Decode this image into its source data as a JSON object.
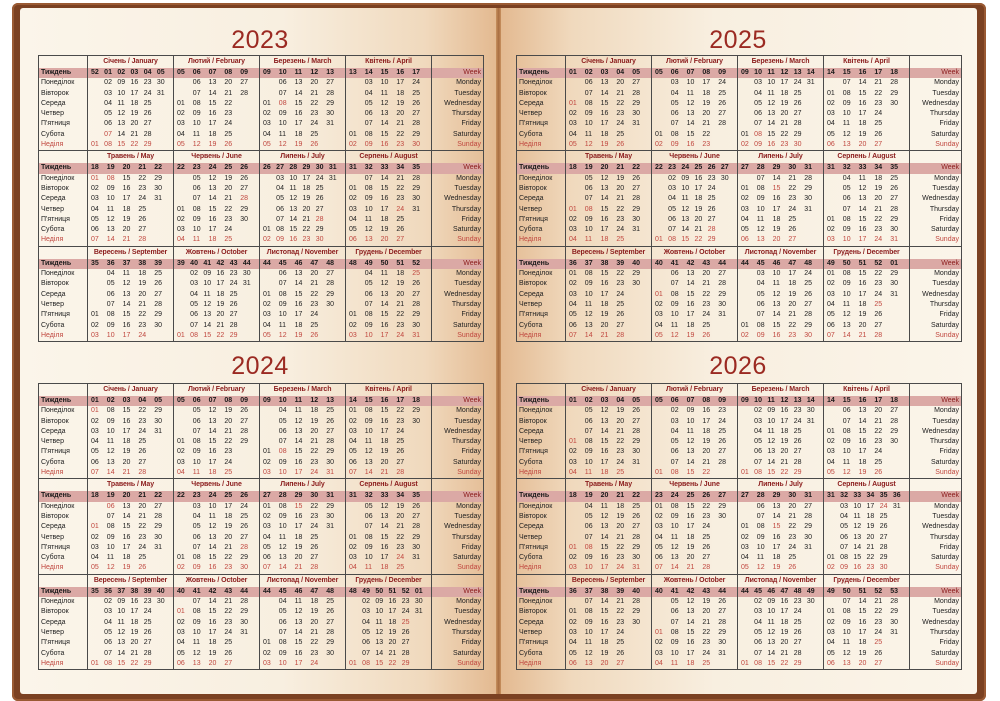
{
  "labels_ua": [
    "Тиждень",
    "Понеділок",
    "Вівторок",
    "Середа",
    "Четвер",
    "П'ятниця",
    "Субота",
    "Неділя"
  ],
  "labels_en": [
    "Week",
    "Monday",
    "Tuesday",
    "Wednesday",
    "Thursday",
    "Friday",
    "Saturday",
    "Sunday"
  ],
  "month_names": [
    "Січень / January",
    "Лютий / February",
    "Березень / March",
    "Квітень / April",
    "Травень / May",
    "Червень / June",
    "Липень / July",
    "Серпень / August",
    "Вересень / September",
    "Жовтень / October",
    "Листопад / November",
    "Грудень / December"
  ],
  "colors": {
    "cover": "#7b4122",
    "title": "#9b2a22",
    "month_header": "#8b1c1c",
    "week_band": "#dba9a5",
    "holiday": "#c0473f"
  },
  "years": [
    {
      "year": "2023",
      "holidays": [
        "1-7",
        "3-8",
        "5-1",
        "5-8",
        "6-28",
        "7-28",
        "8-24",
        "12-25"
      ],
      "months": [
        {
          "weeks": "52 01 02 03 04 05",
          "rows": [
            "   02 09 16 23 30",
            "   03 10 17 24 31",
            "   04 11 18 25",
            "   05 12 19 26",
            "   06 13 20 27",
            "   07 14 21 28",
            "01 08 15 22 29"
          ]
        },
        {
          "weeks": "05 06 07 08 09",
          "rows": [
            "   06 13 20 27",
            "   07 14 21 28",
            "01 08 15 22",
            "02 09 16 23",
            "03 10 17 24",
            "04 11 18 25",
            "05 12 19 26"
          ]
        },
        {
          "weeks": "09 10 11 12 13",
          "rows": [
            "   06 13 20 27",
            "   07 14 21 28",
            "01 08 15 22 29",
            "02 09 16 23 30",
            "03 10 17 24 31",
            "04 11 18 25",
            "05 12 19 26"
          ]
        },
        {
          "weeks": "13 14 15 16 17",
          "rows": [
            "   03 10 17 24",
            "   04 11 18 25",
            "   05 12 19 26",
            "   06 13 20 27",
            "   07 14 21 28",
            "01 08 15 22 29",
            "02 09 16 23 30"
          ]
        },
        {
          "weeks": "18 19 20 21 22",
          "rows": [
            "01 08 15 22 29",
            "02 09 16 23 30",
            "03 10 17 24 31",
            "04 11 18 25",
            "05 12 19 26",
            "06 13 20 27",
            "07 14 21 28"
          ]
        },
        {
          "weeks": "22 23 24 25 26",
          "rows": [
            "   05 12 19 26",
            "   06 13 20 27",
            "   07 14 21 28",
            "01 08 15 22 29",
            "02 09 16 23 30",
            "03 10 17 24",
            "04 11 18 25"
          ]
        },
        {
          "weeks": "26 27 28 29 30 31",
          "rows": [
            "   03 10 17 24 31",
            "   04 11 18 25",
            "   05 12 19 26",
            "   06 13 20 27",
            "   07 14 21 28",
            "01 08 15 22 29",
            "02 09 16 23 30"
          ]
        },
        {
          "weeks": "31 32 33 34 35",
          "rows": [
            "   07 14 21 28",
            "01 08 15 22 29",
            "02 09 16 23 30",
            "03 10 17 24 31",
            "04 11 18 25",
            "05 12 19 26",
            "06 13 20 27"
          ]
        },
        {
          "weeks": "35 36 37 38 39",
          "rows": [
            "   04 11 18 25",
            "   05 12 19 26",
            "   06 13 20 27",
            "   07 14 21 28",
            "01 08 15 22 29",
            "02 09 16 23 30",
            "03 10 17 24"
          ]
        },
        {
          "weeks": "39 40 41 42 43 44",
          "rows": [
            "   02 09 16 23 30",
            "   03 10 17 24 31",
            "   04 11 18 25",
            "   05 12 19 26",
            "   06 13 20 27",
            "   07 14 21 28",
            "01 08 15 22 29"
          ]
        },
        {
          "weeks": "44 45 46 47 48",
          "rows": [
            "   06 13 20 27",
            "   07 14 21 28",
            "01 08 15 22 29",
            "02 09 16 23 30",
            "03 10 17 24",
            "04 11 18 25",
            "05 12 19 26"
          ]
        },
        {
          "weeks": "48 49 50 51 52",
          "rows": [
            "   04 11 18 25",
            "   05 12 19 26",
            "   06 13 20 27",
            "   07 14 21 28",
            "01 08 15 22 29",
            "02 09 16 23 30",
            "03 10 17 24 31"
          ]
        }
      ]
    },
    {
      "year": "2024",
      "holidays": [
        "1-1",
        "1-7",
        "3-8",
        "5-1",
        "5-6",
        "6-28",
        "7-15",
        "8-24",
        "10-1",
        "12-25"
      ],
      "months": [
        {
          "weeks": "01 02 03 04 05",
          "rows": [
            "01 08 15 22 29",
            "02 09 16 23 30",
            "03 10 17 24 31",
            "04 11 18 25",
            "05 12 19 26",
            "06 13 20 27",
            "07 14 21 28"
          ]
        },
        {
          "weeks": "05 06 07 08 09",
          "rows": [
            "   05 12 19 26",
            "   06 13 20 27",
            "   07 14 21 28",
            "01 08 15 22 29",
            "02 09 16 23",
            "03 10 17 24",
            "04 11 18 25"
          ]
        },
        {
          "weeks": "09 10 11 12 13",
          "rows": [
            "   04 11 18 25",
            "   05 12 19 26",
            "   06 13 20 27",
            "   07 14 21 28",
            "01 08 15 22 29",
            "02 09 16 23 30",
            "03 10 17 24 31"
          ]
        },
        {
          "weeks": "14 15 16 17 18",
          "rows": [
            "01 08 15 22 29",
            "02 09 16 23 30",
            "03 10 17 24",
            "04 11 18 25",
            "05 12 19 26",
            "06 13 20 27",
            "07 14 21 28"
          ]
        },
        {
          "weeks": "18 19 20 21 22",
          "rows": [
            "   06 13 20 27",
            "   07 14 21 28",
            "01 08 15 22 29",
            "02 09 16 23 30",
            "03 10 17 24 31",
            "04 11 18 25",
            "05 12 19 26"
          ]
        },
        {
          "weeks": "22 23 24 25 26",
          "rows": [
            "   03 10 17 24",
            "   04 11 18 25",
            "   05 12 19 26",
            "   06 13 20 27",
            "   07 14 21 28",
            "01 08 15 22 29",
            "02 09 16 23 30"
          ]
        },
        {
          "weeks": "27 28 29 30 31",
          "rows": [
            "01 08 15 22 29",
            "02 09 16 23 30",
            "03 10 17 24 31",
            "04 11 18 25",
            "05 12 19 26",
            "06 13 20 27",
            "07 14 21 28"
          ]
        },
        {
          "weeks": "31 32 33 34 35",
          "rows": [
            "   05 12 19 26",
            "   06 13 20 27",
            "   07 14 21 28",
            "01 08 15 22 29",
            "02 09 16 23 30",
            "03 10 17 24 31",
            "04 11 18 25"
          ]
        },
        {
          "weeks": "35 36 37 38 39 40",
          "rows": [
            "   02 09 16 23 30",
            "   03 10 17 24",
            "   04 11 18 25",
            "   05 12 19 26",
            "   06 13 20 27",
            "   07 14 21 28",
            "01 08 15 22 29"
          ]
        },
        {
          "weeks": "40 41 42 43 44",
          "rows": [
            "   07 14 21 28",
            "01 08 15 22 29",
            "02 09 16 23 30",
            "03 10 17 24 31",
            "04 11 18 25",
            "05 12 19 26",
            "06 13 20 27"
          ]
        },
        {
          "weeks": "44 45 46 47 48",
          "rows": [
            "   04 11 18 25",
            "   05 12 19 26",
            "   06 13 20 27",
            "   07 14 21 28",
            "01 08 15 22 29",
            "02 09 16 23 30",
            "03 10 17 24"
          ]
        },
        {
          "weeks": "48 49 50 51 52 01",
          "rows": [
            "   02 09 16 23 30",
            "   03 10 17 24 31",
            "   04 11 18 25",
            "   05 12 19 26",
            "   06 13 20 27",
            "   07 14 21 28",
            "01 08 15 22 29"
          ]
        }
      ]
    },
    {
      "year": "2025",
      "holidays": [
        "1-1",
        "3-8",
        "5-1",
        "5-8",
        "6-28",
        "7-15",
        "8-24",
        "10-1",
        "12-25"
      ],
      "months": [
        {
          "weeks": "01 02 03 04 05",
          "rows": [
            "   06 13 20 27",
            "   07 14 21 28",
            "01 08 15 22 29",
            "02 09 16 23 30",
            "03 10 17 24 31",
            "04 11 18 25",
            "05 12 19 26"
          ]
        },
        {
          "weeks": "05 06 07 08 09",
          "rows": [
            "   03 10 17 24",
            "   04 11 18 25",
            "   05 12 19 26",
            "   06 13 20 27",
            "   07 14 21 28",
            "01 08 15 22",
            "02 09 16 23"
          ]
        },
        {
          "weeks": "09 10 11 12 13 14",
          "rows": [
            "   03 10 17 24 31",
            "   04 11 18 25",
            "   05 12 19 26",
            "   06 13 20 27",
            "   07 14 21 28",
            "01 08 15 22 29",
            "02 09 16 23 30"
          ]
        },
        {
          "weeks": "14 15 16 17 18",
          "rows": [
            "   07 14 21 28",
            "01 08 15 22 29",
            "02 09 16 23 30",
            "03 10 17 24",
            "04 11 18 25",
            "05 12 19 26",
            "06 13 20 27"
          ]
        },
        {
          "weeks": "18 19 20 21 22",
          "rows": [
            "   05 12 19 26",
            "   06 13 20 27",
            "   07 14 21 28",
            "01 08 15 22 29",
            "02 09 16 23 30",
            "03 10 17 24 31",
            "04 11 18 25"
          ]
        },
        {
          "weeks": "22 23 24 25 26 27",
          "rows": [
            "   02 09 16 23 30",
            "   03 10 17 24",
            "   04 11 18 25",
            "   05 12 19 26",
            "   06 13 20 27",
            "   07 14 21 28",
            "01 08 15 22 29"
          ]
        },
        {
          "weeks": "27 28 29 30 31",
          "rows": [
            "   07 14 21 28",
            "01 08 15 22 29",
            "02 09 16 23 30",
            "03 10 17 24 31",
            "04 11 18 25",
            "05 12 19 26",
            "06 13 20 27"
          ]
        },
        {
          "weeks": "31 32 33 34 35",
          "rows": [
            "   04 11 18 25",
            "   05 12 19 26",
            "   06 13 20 27",
            "   07 14 21 28",
            "01 08 15 22 29",
            "02 09 16 23 30",
            "03 10 17 24 31"
          ]
        },
        {
          "weeks": "36 37 38 39 40",
          "rows": [
            "01 08 15 22 29",
            "02 09 16 23 30",
            "03 10 17 24",
            "04 11 18 25",
            "05 12 19 26",
            "06 13 20 27",
            "07 14 21 28"
          ]
        },
        {
          "weeks": "40 41 42 43 44",
          "rows": [
            "   06 13 20 27",
            "   07 14 21 28",
            "01 08 15 22 29",
            "02 09 16 23 30",
            "03 10 17 24 31",
            "04 11 18 25",
            "05 12 19 26"
          ]
        },
        {
          "weeks": "44 45 46 47 48",
          "rows": [
            "   03 10 17 24",
            "   04 11 18 25",
            "   05 12 19 26",
            "   06 13 20 27",
            "   07 14 21 28",
            "01 08 15 22 29",
            "02 09 16 23 30"
          ]
        },
        {
          "weeks": "49 50 51 52 01",
          "rows": [
            "01 08 15 22 29",
            "02 09 16 23 30",
            "03 10 17 24 31",
            "04 11 18 25",
            "05 12 19 26",
            "06 13 20 27",
            "07 14 21 28"
          ]
        }
      ]
    },
    {
      "year": "2026",
      "holidays": [
        "1-1",
        "3-8",
        "5-1",
        "5-8",
        "6-28",
        "7-15",
        "8-24",
        "10-1",
        "12-25"
      ],
      "months": [
        {
          "weeks": "01 02 03 04 05",
          "rows": [
            "   05 12 19 26",
            "   06 13 20 27",
            "   07 14 21 28",
            "01 08 15 22 29",
            "02 09 16 23 30",
            "03 10 17 24 31",
            "04 11 18 25"
          ]
        },
        {
          "weeks": "05 06 07 08 09",
          "rows": [
            "   02 09 16 23",
            "   03 10 17 24",
            "   04 11 18 25",
            "   05 12 19 26",
            "   06 13 20 27",
            "   07 14 21 28",
            "01 08 15 22"
          ]
        },
        {
          "weeks": "09 10 11 12 13 14",
          "rows": [
            "   02 09 16 23 30",
            "   03 10 17 24 31",
            "   04 11 18 25",
            "   05 12 19 26",
            "   06 13 20 27",
            "   07 14 21 28",
            "01 08 15 22 29"
          ]
        },
        {
          "weeks": "14 15 16 17 18",
          "rows": [
            "   06 13 20 27",
            "   07 14 21 28",
            "01 08 15 22 29",
            "02 09 16 23 30",
            "03 10 17 24",
            "04 11 18 25",
            "05 12 19 26"
          ]
        },
        {
          "weeks": "18 19 20 21 22",
          "rows": [
            "   04 11 18 25",
            "   05 12 19 26",
            "   06 13 20 27",
            "   07 14 21 28",
            "01 08 15 22 29",
            "02 09 16 23 30",
            "03 10 17 24 31"
          ]
        },
        {
          "weeks": "23 24 25 26 27",
          "rows": [
            "01 08 15 22 29",
            "02 09 16 23 30",
            "03 10 17 24",
            "04 11 18 25",
            "05 12 19 26",
            "06 13 20 27",
            "07 14 21 28"
          ]
        },
        {
          "weeks": "27 28 29 30 31",
          "rows": [
            "   06 13 20 27",
            "   07 14 21 28",
            "01 08 15 22 29",
            "02 09 16 23 30",
            "03 10 17 24 31",
            "04 11 18 25",
            "05 12 19 26"
          ]
        },
        {
          "weeks": "31 32 33 34 35 36",
          "rows": [
            "   03 10 17 24 31",
            "   04 11 18 25",
            "   05 12 19 26",
            "   06 13 20 27",
            "   07 14 21 28",
            "01 08 15 22 29",
            "02 09 16 23 30"
          ]
        },
        {
          "weeks": "36 37 38 39 40",
          "rows": [
            "   07 14 21 28",
            "01 08 15 22 29",
            "02 09 16 23 30",
            "03 10 17 24",
            "04 11 18 25",
            "05 12 19 26",
            "06 13 20 27"
          ]
        },
        {
          "weeks": "40 41 42 43 44",
          "rows": [
            "   05 12 19 26",
            "   06 13 20 27",
            "   07 14 21 28",
            "01 08 15 22 29",
            "02 09 16 23 30",
            "03 10 17 24 31",
            "04 11 18 25"
          ]
        },
        {
          "weeks": "44 45 46 47 48 49",
          "rows": [
            "   02 09 16 23 30",
            "   03 10 17 24",
            "   04 11 18 25",
            "   05 12 19 26",
            "   06 13 20 27",
            "   07 14 21 28",
            "01 08 15 22 29"
          ]
        },
        {
          "weeks": "49 50 51 52 53",
          "rows": [
            "   07 14 21 28",
            "01 08 15 22 29",
            "02 09 16 23 30",
            "03 10 17 24 31",
            "04 11 18 25",
            "05 12 19 26",
            "06 13 20 27"
          ]
        }
      ]
    }
  ]
}
